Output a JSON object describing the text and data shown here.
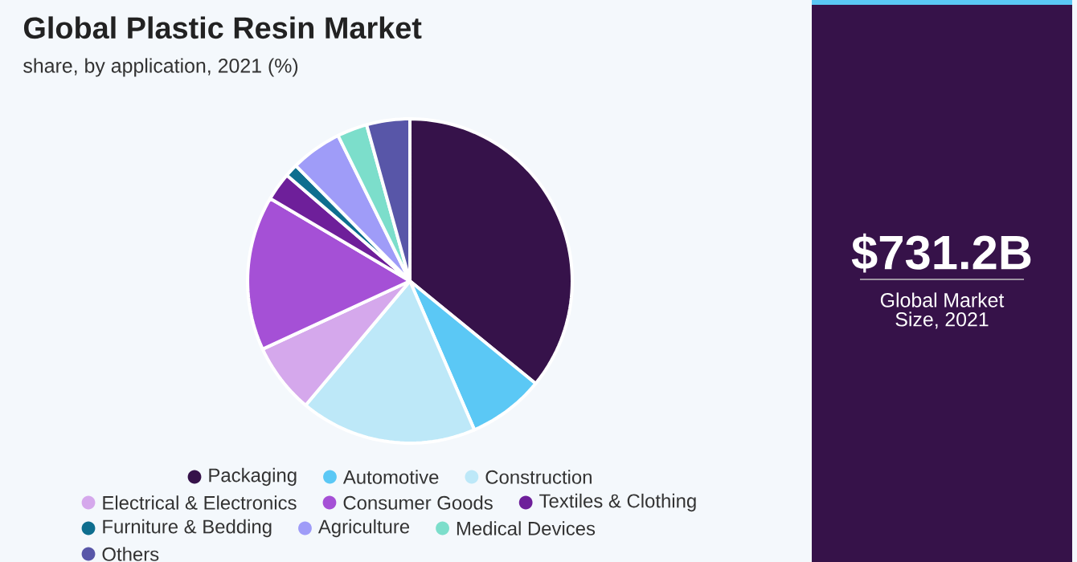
{
  "chart_data": {
    "type": "pie",
    "title": "Global Plastic Resin Market",
    "subtitle": "share, by application, 2021 (%)",
    "categories": [
      "Packaging",
      "Automotive",
      "Construction",
      "Electrical & Electronics",
      "Consumer Goods",
      "Textiles & Clothing",
      "Furniture & Bedding",
      "Agriculture",
      "Medical Devices",
      "Others"
    ],
    "values": [
      35.9,
      7.6,
      17.6,
      7.0,
      15.4,
      2.8,
      1.3,
      5.1,
      3.0,
      4.3
    ],
    "colors": [
      "#36124a",
      "#5bc8f5",
      "#bde8f8",
      "#d5a8ec",
      "#a550d6",
      "#6e1f9a",
      "#0e6e8f",
      "#9f9cf8",
      "#7cdecb",
      "#5856a8"
    ],
    "legend": "bottom",
    "annotations": [
      "$731.2B",
      "Global Market Size, 2021"
    ]
  }
}
